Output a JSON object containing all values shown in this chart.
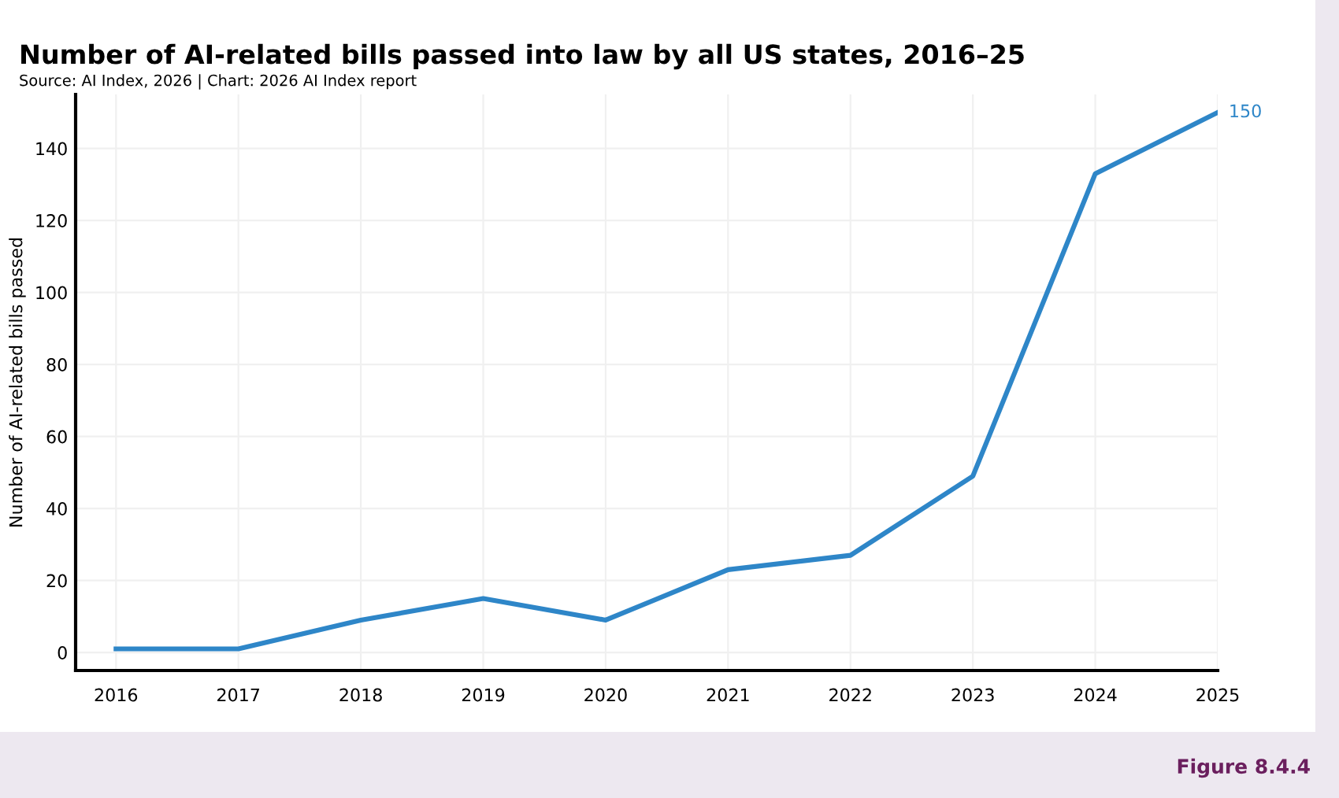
{
  "chart_data": {
    "type": "line",
    "title": "Number of AI-related bills passed into law by all US states, 2016–25",
    "subtitle": "Source: AI Index, 2026 | Chart: 2026 AI Index report",
    "ylabel": "Number of AI-related bills passed",
    "x": [
      2016,
      2017,
      2018,
      2019,
      2020,
      2021,
      2022,
      2023,
      2024,
      2025
    ],
    "series": [
      {
        "color": "#2e86c8",
        "values": [
          1,
          1,
          9,
          15,
          9,
          23,
          27,
          49,
          133,
          150
        ],
        "value_labels": [
          null,
          null,
          null,
          null,
          null,
          null,
          null,
          null,
          null,
          "150"
        ]
      }
    ],
    "xlim": [
      2015.67,
      2025
    ],
    "xticks": [
      2016,
      2017,
      2018,
      2019,
      2020,
      2021,
      2022,
      2023,
      2024,
      2025
    ],
    "ylim": [
      -5,
      155
    ],
    "yticks": [
      0,
      20,
      40,
      60,
      80,
      100,
      120,
      140
    ],
    "grid": true,
    "marker": "none",
    "line_style": "solid",
    "annotations": [
      "Figure 8.4.4"
    ]
  }
}
